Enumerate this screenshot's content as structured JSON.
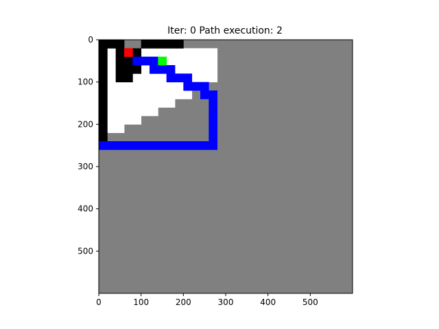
{
  "figure": {
    "title": "Iter: 0   Path execution: 2"
  },
  "map": {
    "extent": [
      0,
      600
    ],
    "cell_size": 20,
    "colors": {
      "unknown": "#808080",
      "free": "#ffffff",
      "obstacle": "#000000",
      "path_boundary": "#0000ff",
      "robot": "#ff0000",
      "goal": "#00ff00"
    },
    "free_cells": [
      [
        1,
        1
      ],
      [
        2,
        1
      ],
      [
        3,
        1
      ],
      [
        4,
        1
      ],
      [
        5,
        1
      ],
      [
        6,
        1
      ],
      [
        7,
        1
      ],
      [
        8,
        1
      ],
      [
        9,
        1
      ],
      [
        10,
        1
      ],
      [
        11,
        1
      ],
      [
        12,
        1
      ],
      [
        13,
        1
      ],
      [
        1,
        2
      ],
      [
        2,
        2
      ],
      [
        3,
        2
      ],
      [
        4,
        2
      ],
      [
        5,
        2
      ],
      [
        6,
        2
      ],
      [
        7,
        2
      ],
      [
        8,
        2
      ],
      [
        9,
        2
      ],
      [
        10,
        2
      ],
      [
        11,
        2
      ],
      [
        12,
        2
      ],
      [
        13,
        2
      ],
      [
        1,
        3
      ],
      [
        2,
        3
      ],
      [
        3,
        3
      ],
      [
        4,
        3
      ],
      [
        5,
        3
      ],
      [
        6,
        3
      ],
      [
        7,
        3
      ],
      [
        8,
        3
      ],
      [
        9,
        3
      ],
      [
        10,
        3
      ],
      [
        11,
        3
      ],
      [
        12,
        3
      ],
      [
        13,
        3
      ],
      [
        1,
        4
      ],
      [
        2,
        4
      ],
      [
        3,
        4
      ],
      [
        4,
        4
      ],
      [
        5,
        4
      ],
      [
        6,
        4
      ],
      [
        7,
        4
      ],
      [
        8,
        4
      ],
      [
        9,
        4
      ],
      [
        10,
        4
      ],
      [
        11,
        4
      ],
      [
        12,
        4
      ],
      [
        13,
        4
      ],
      [
        1,
        5
      ],
      [
        2,
        5
      ],
      [
        3,
        5
      ],
      [
        4,
        5
      ],
      [
        5,
        5
      ],
      [
        6,
        5
      ],
      [
        7,
        5
      ],
      [
        8,
        5
      ],
      [
        9,
        5
      ],
      [
        10,
        5
      ],
      [
        11,
        5
      ],
      [
        12,
        5
      ],
      [
        1,
        6
      ],
      [
        2,
        6
      ],
      [
        3,
        6
      ],
      [
        4,
        6
      ],
      [
        5,
        6
      ],
      [
        6,
        6
      ],
      [
        7,
        6
      ],
      [
        8,
        6
      ],
      [
        9,
        6
      ],
      [
        10,
        6
      ],
      [
        1,
        7
      ],
      [
        2,
        7
      ],
      [
        3,
        7
      ],
      [
        4,
        7
      ],
      [
        5,
        7
      ],
      [
        6,
        7
      ],
      [
        7,
        7
      ],
      [
        8,
        7
      ],
      [
        1,
        8
      ],
      [
        2,
        8
      ],
      [
        3,
        8
      ],
      [
        4,
        8
      ],
      [
        5,
        8
      ],
      [
        6,
        8
      ],
      [
        1,
        9
      ],
      [
        2,
        9
      ],
      [
        3,
        9
      ],
      [
        4,
        9
      ],
      [
        1,
        10
      ],
      [
        2,
        10
      ]
    ],
    "obstacle_cells": [
      [
        0,
        0
      ],
      [
        0,
        1
      ],
      [
        0,
        2
      ],
      [
        0,
        3
      ],
      [
        0,
        4
      ],
      [
        0,
        5
      ],
      [
        0,
        6
      ],
      [
        0,
        7
      ],
      [
        0,
        8
      ],
      [
        0,
        9
      ],
      [
        0,
        10
      ],
      [
        0,
        11
      ],
      [
        1,
        0
      ],
      [
        2,
        0
      ],
      [
        2,
        1
      ],
      [
        3,
        1
      ],
      [
        4,
        1
      ],
      [
        4,
        2
      ],
      [
        3,
        2
      ],
      [
        2,
        2
      ],
      [
        4,
        3
      ],
      [
        3,
        3
      ],
      [
        2,
        3
      ],
      [
        3,
        4
      ],
      [
        2,
        4
      ],
      [
        5,
        0
      ],
      [
        6,
        0
      ],
      [
        7,
        0
      ],
      [
        8,
        0
      ],
      [
        9,
        0
      ]
    ],
    "path_cells": [
      [
        0,
        12
      ],
      [
        1,
        12
      ],
      [
        2,
        12
      ],
      [
        3,
        12
      ],
      [
        4,
        12
      ],
      [
        5,
        12
      ],
      [
        6,
        12
      ],
      [
        7,
        12
      ],
      [
        8,
        12
      ],
      [
        9,
        12
      ],
      [
        10,
        12
      ],
      [
        11,
        12
      ],
      [
        12,
        12
      ],
      [
        13,
        12
      ],
      [
        13,
        11
      ],
      [
        13,
        10
      ],
      [
        13,
        9
      ],
      [
        13,
        8
      ],
      [
        13,
        7
      ],
      [
        13,
        6
      ],
      [
        12,
        6
      ],
      [
        12,
        5
      ],
      [
        11,
        5
      ],
      [
        10,
        5
      ],
      [
        10,
        4
      ],
      [
        9,
        4
      ],
      [
        8,
        4
      ],
      [
        8,
        3
      ],
      [
        7,
        3
      ],
      [
        6,
        3
      ],
      [
        6,
        2
      ],
      [
        5,
        2
      ],
      [
        4,
        2
      ]
    ],
    "robot_cell": [
      3,
      1
    ],
    "goal_cell": [
      7,
      2
    ]
  },
  "axes": {
    "x_ticks": [
      "0",
      "100",
      "200",
      "300",
      "400",
      "500"
    ],
    "y_ticks": [
      "0",
      "100",
      "200",
      "300",
      "400",
      "500"
    ]
  }
}
